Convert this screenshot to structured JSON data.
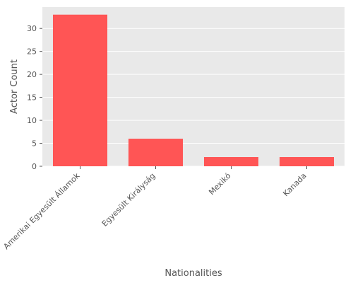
{
  "chart_data": {
    "type": "bar",
    "categories": [
      "Amerikai Egyesült Államok",
      "Egyesült Királyság",
      "Mexikó",
      "Kanada"
    ],
    "values": [
      33,
      6,
      2,
      2
    ],
    "title": "",
    "xlabel": "Nationalities",
    "ylabel": "Actor Count",
    "ylim": [
      0,
      34.65
    ],
    "yticks": [
      0,
      5,
      10,
      15,
      20,
      25,
      30
    ],
    "grid": true,
    "colors": {
      "bar": "#ff5555",
      "plot_background": "#e9e9e9",
      "grid": "#ffffff",
      "text": "#555555"
    }
  }
}
